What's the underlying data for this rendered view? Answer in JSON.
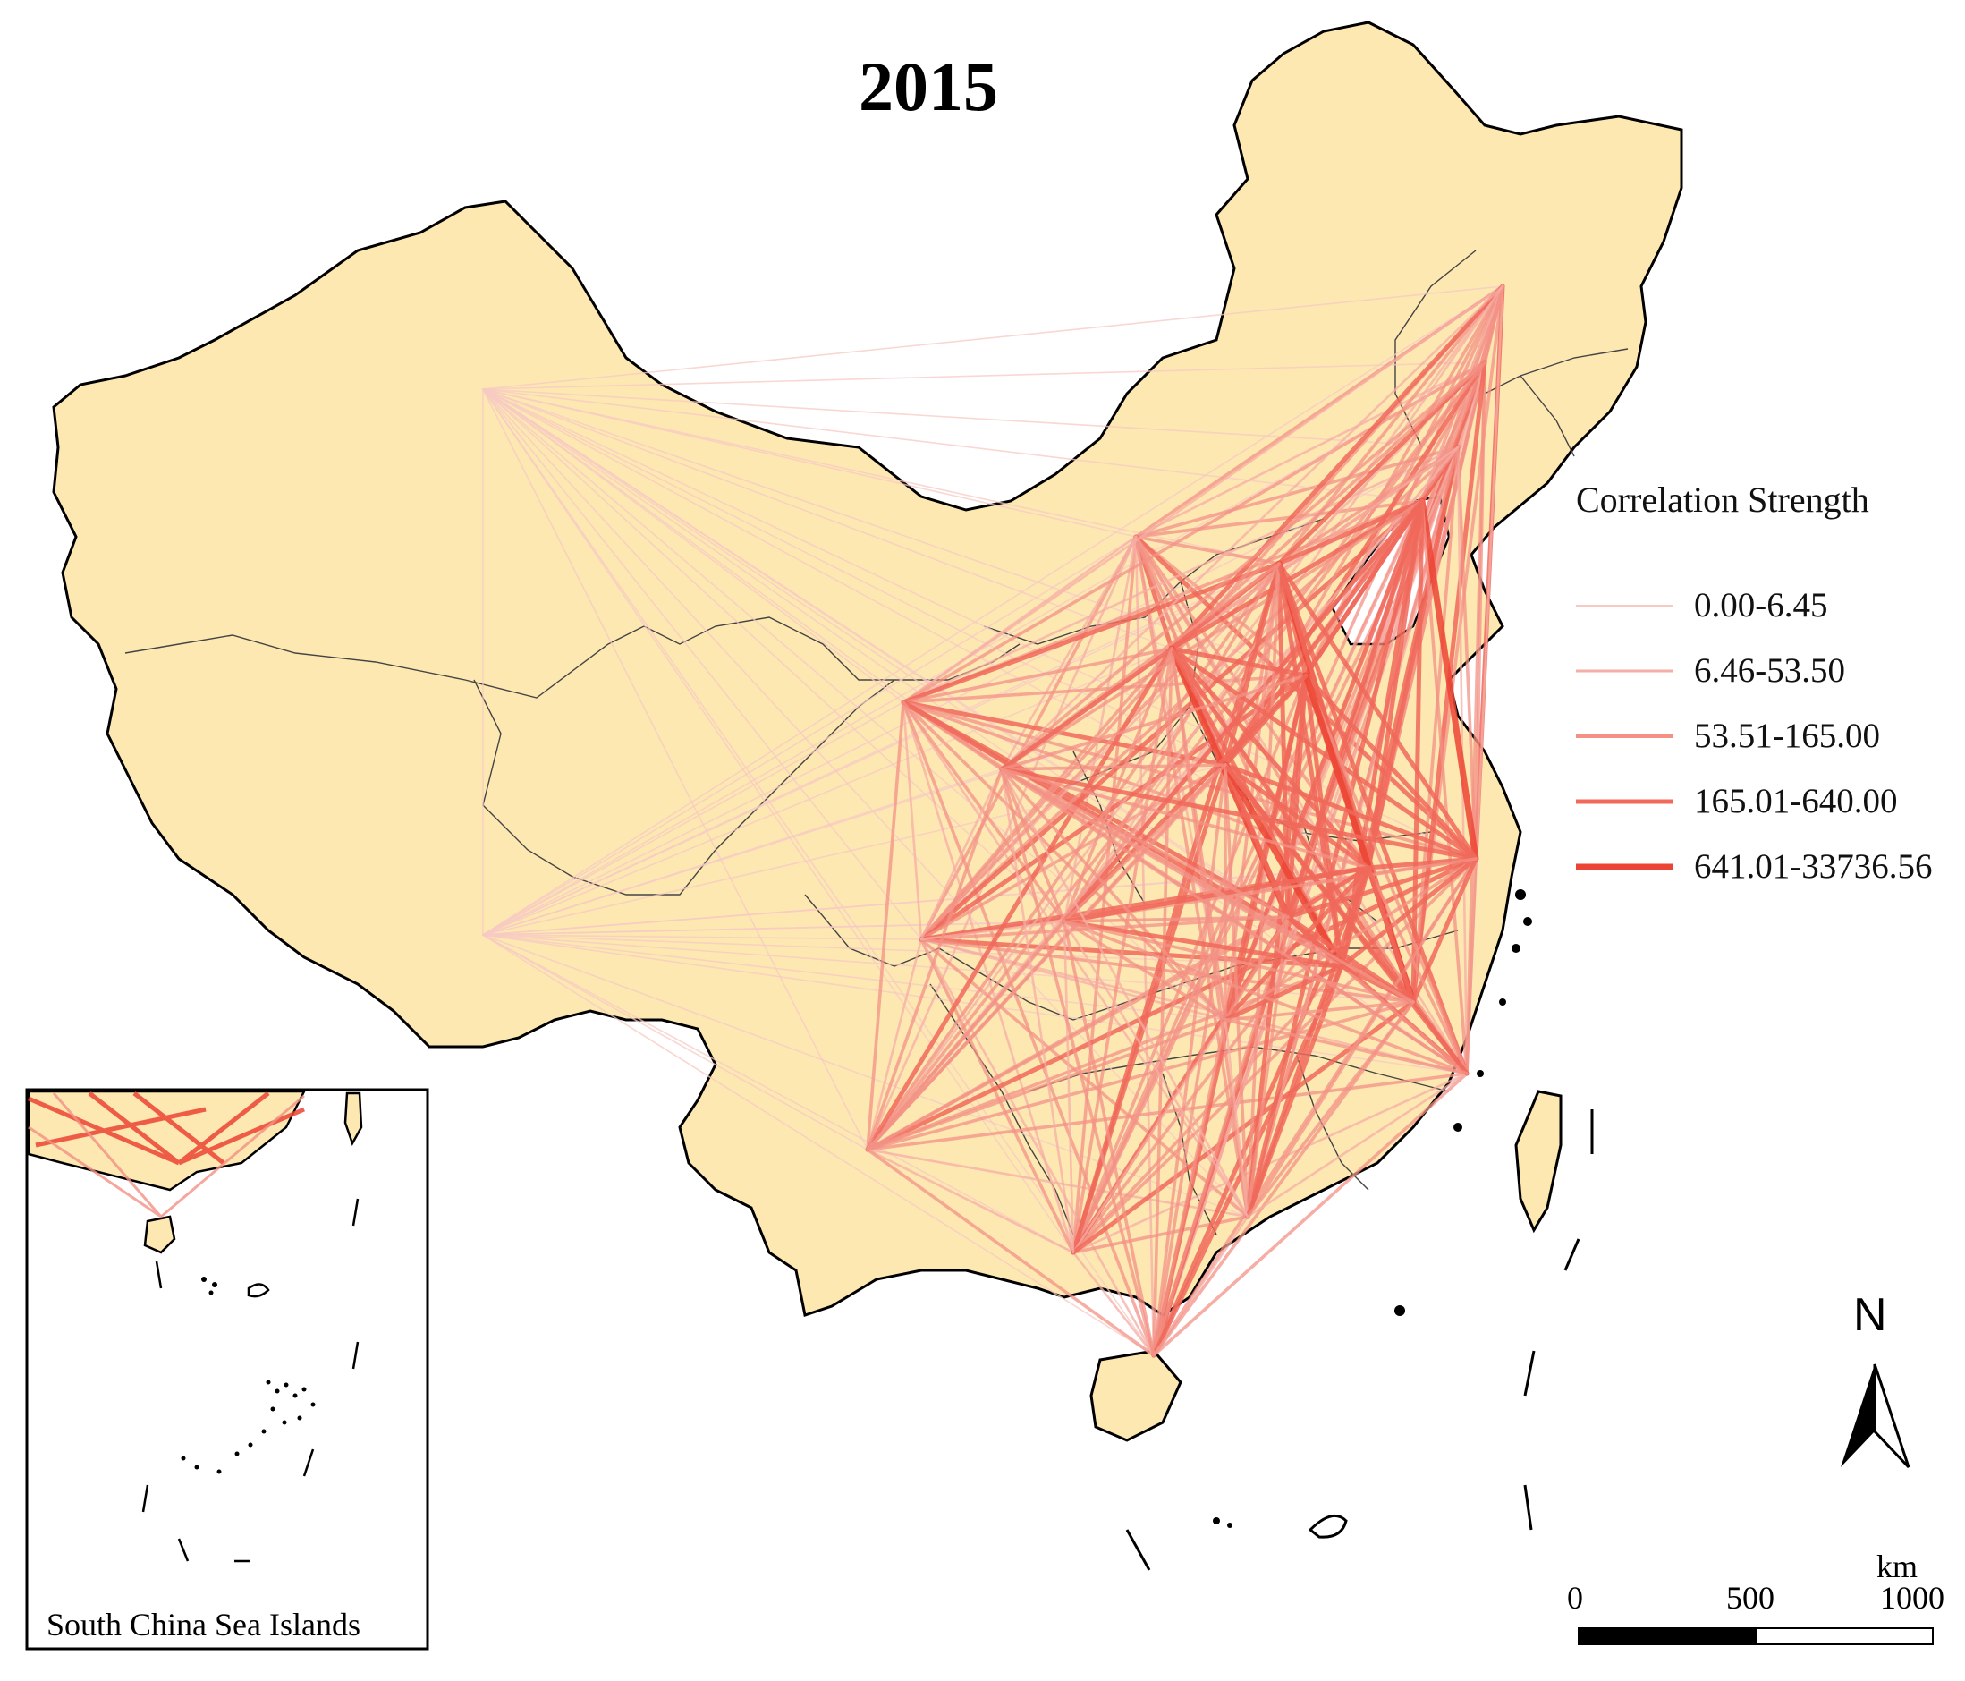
{
  "title": "2015",
  "legend": {
    "title": "Correlation Strength",
    "items": [
      {
        "label": "0.00-6.45",
        "color": "#f7c9c3"
      },
      {
        "label": "6.46-53.50",
        "color": "#f5aea5"
      },
      {
        "label": "53.51-165.00",
        "color": "#f39185"
      },
      {
        "label": "165.01-640.00",
        "color": "#f0695a"
      },
      {
        "label": "641.01-33736.56",
        "color": "#ec4434"
      }
    ]
  },
  "colors": {
    "land": "#fde8b2",
    "border": "#000000",
    "sea": "#ffffff"
  },
  "inset": {
    "label": "South China Sea Islands"
  },
  "north_arrow": {
    "label": "N",
    "icon": "north-arrow-icon"
  },
  "scale_bar": {
    "unit": "km",
    "ticks": [
      "0",
      "500",
      "1000"
    ]
  }
}
